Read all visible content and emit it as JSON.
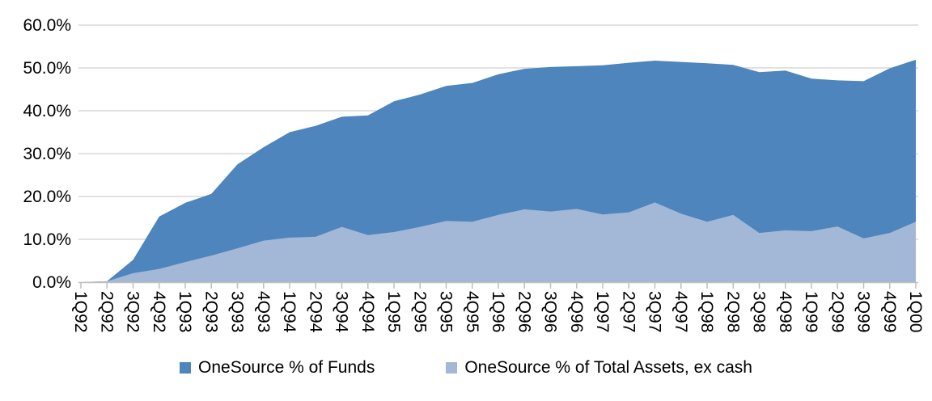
{
  "chart_data": {
    "type": "area",
    "title": "",
    "categories": [
      "1Q92",
      "2Q92",
      "3Q92",
      "4Q92",
      "1Q93",
      "2Q93",
      "3Q93",
      "4Q93",
      "1Q94",
      "2Q94",
      "3Q94",
      "4Q94",
      "1Q95",
      "2Q95",
      "3Q95",
      "4Q95",
      "1Q96",
      "2Q96",
      "3Q96",
      "4Q96",
      "1Q97",
      "2Q97",
      "3Q97",
      "4Q97",
      "1Q98",
      "2Q98",
      "3Q98",
      "4Q98",
      "1Q99",
      "2Q99",
      "3Q99",
      "4Q99",
      "1Q00"
    ],
    "series": [
      {
        "name": "OneSource % of Funds",
        "color": "#4d85bc",
        "values": [
          0.0,
          0.2,
          5.2,
          15.3,
          18.5,
          20.6,
          27.5,
          31.5,
          35.0,
          36.5,
          38.6,
          38.9,
          42.2,
          43.8,
          45.8,
          46.5,
          48.5,
          49.8,
          50.2,
          50.4,
          50.6,
          51.2,
          51.7,
          51.4,
          51.1,
          50.7,
          49.0,
          49.4,
          47.5,
          47.1,
          46.9,
          49.9,
          51.9
        ]
      },
      {
        "name": "OneSource % of Total Assets, ex cash",
        "color": "#a3b7d6",
        "values": [
          0.0,
          0.2,
          2.1,
          3.1,
          4.7,
          6.2,
          7.9,
          9.7,
          10.4,
          10.6,
          12.9,
          11.0,
          11.7,
          12.9,
          14.3,
          14.1,
          15.7,
          17.0,
          16.5,
          17.1,
          15.8,
          16.3,
          18.6,
          16.0,
          14.1,
          15.7,
          11.5,
          12.1,
          11.9,
          13.0,
          10.2,
          11.5,
          14.1
        ]
      }
    ],
    "y_axis": {
      "tick_labels": [
        "0.0%",
        "10.0%",
        "20.0%",
        "30.0%",
        "40.0%",
        "50.0%",
        "60.0%"
      ],
      "min": 0,
      "max": 60,
      "unit": "percent"
    },
    "x_axis": {
      "label_rotation_deg": 90
    },
    "grid": true,
    "legend_position": "bottom",
    "colors": {
      "gridline": "#d9d9d9",
      "axis": "#bfbfbf",
      "text": "#000000",
      "background": "#ffffff"
    }
  }
}
